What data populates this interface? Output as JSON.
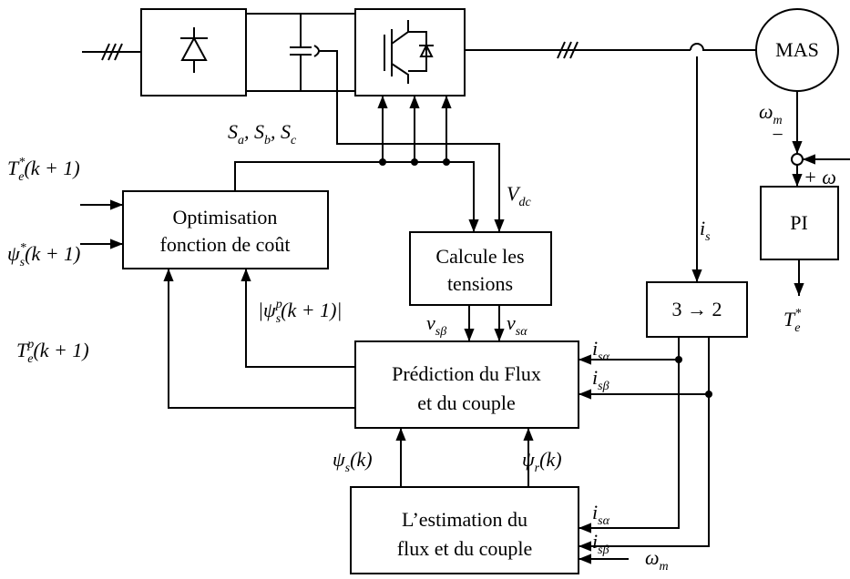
{
  "blocks": {
    "motor": "MAS",
    "pi": "PI",
    "transform": "3 → 2",
    "optimisation": [
      "Optimisation",
      "fonction de coût"
    ],
    "voltages": [
      "Calcule les",
      "tensions"
    ],
    "prediction": [
      "Prédiction du Flux",
      "et du couple"
    ],
    "estimation": [
      "L’estimation du",
      "flux et du couple"
    ]
  },
  "signals": [
    {
      "parts": [
        {
          "text": "T"
        },
        {
          "sup": "*"
        },
        {
          "sub": "e"
        },
        {
          "text": "(k + 1)"
        }
      ]
    },
    {
      "parts": [
        {
          "text": "ψ"
        },
        {
          "sup": "*"
        },
        {
          "sub": "s"
        },
        {
          "text": "(k + 1)"
        }
      ]
    },
    {
      "parts": [
        {
          "text": "S"
        },
        {
          "sub": "a"
        },
        {
          "text": ", S"
        },
        {
          "sub": "b"
        },
        {
          "text": ", S"
        },
        {
          "sub": "c"
        }
      ]
    },
    {
      "parts": [
        {
          "text": "V"
        },
        {
          "sub": "dc"
        }
      ]
    },
    {
      "parts": [
        {
          "text": "i"
        },
        {
          "sub": "s"
        }
      ]
    },
    {
      "parts": [
        {
          "text": "ω"
        },
        {
          "sub": "m"
        }
      ]
    },
    {
      "parts": [
        {
          "text": "|ψ"
        },
        {
          "sup": "p"
        },
        {
          "sub": "s"
        },
        {
          "text": "(k + 1)|"
        }
      ]
    },
    {
      "parts": [
        {
          "text": "T"
        },
        {
          "sup": "p"
        },
        {
          "sub": "e"
        },
        {
          "text": "(k + 1)"
        }
      ]
    },
    {
      "parts": [
        {
          "text": "v"
        },
        {
          "sub": "sβ"
        }
      ]
    },
    {
      "parts": [
        {
          "text": "v"
        },
        {
          "sub": "sα"
        }
      ]
    },
    {
      "parts": [
        {
          "text": "i"
        },
        {
          "sub": "sα"
        }
      ]
    },
    {
      "parts": [
        {
          "text": "i"
        },
        {
          "sub": "sβ"
        }
      ]
    },
    {
      "parts": [
        {
          "text": "ψ"
        },
        {
          "sub": "s"
        },
        {
          "text": "(k)"
        }
      ]
    },
    {
      "parts": [
        {
          "text": "ψ"
        },
        {
          "sub": "r"
        },
        {
          "text": "(k)"
        }
      ]
    },
    {
      "parts": [
        {
          "text": "i"
        },
        {
          "sub": "sα"
        }
      ]
    },
    {
      "parts": [
        {
          "text": "i"
        },
        {
          "sub": "sβ"
        }
      ]
    },
    {
      "parts": [
        {
          "text": "ω"
        },
        {
          "sub": "m"
        }
      ]
    },
    {
      "parts": [
        {
          "text": "T"
        },
        {
          "sup": "*"
        },
        {
          "sub": "e"
        }
      ]
    },
    {
      "parts": [
        {
          "text": "−"
        }
      ]
    },
    {
      "parts": [
        {
          "text": "+ ω"
        }
      ]
    }
  ]
}
